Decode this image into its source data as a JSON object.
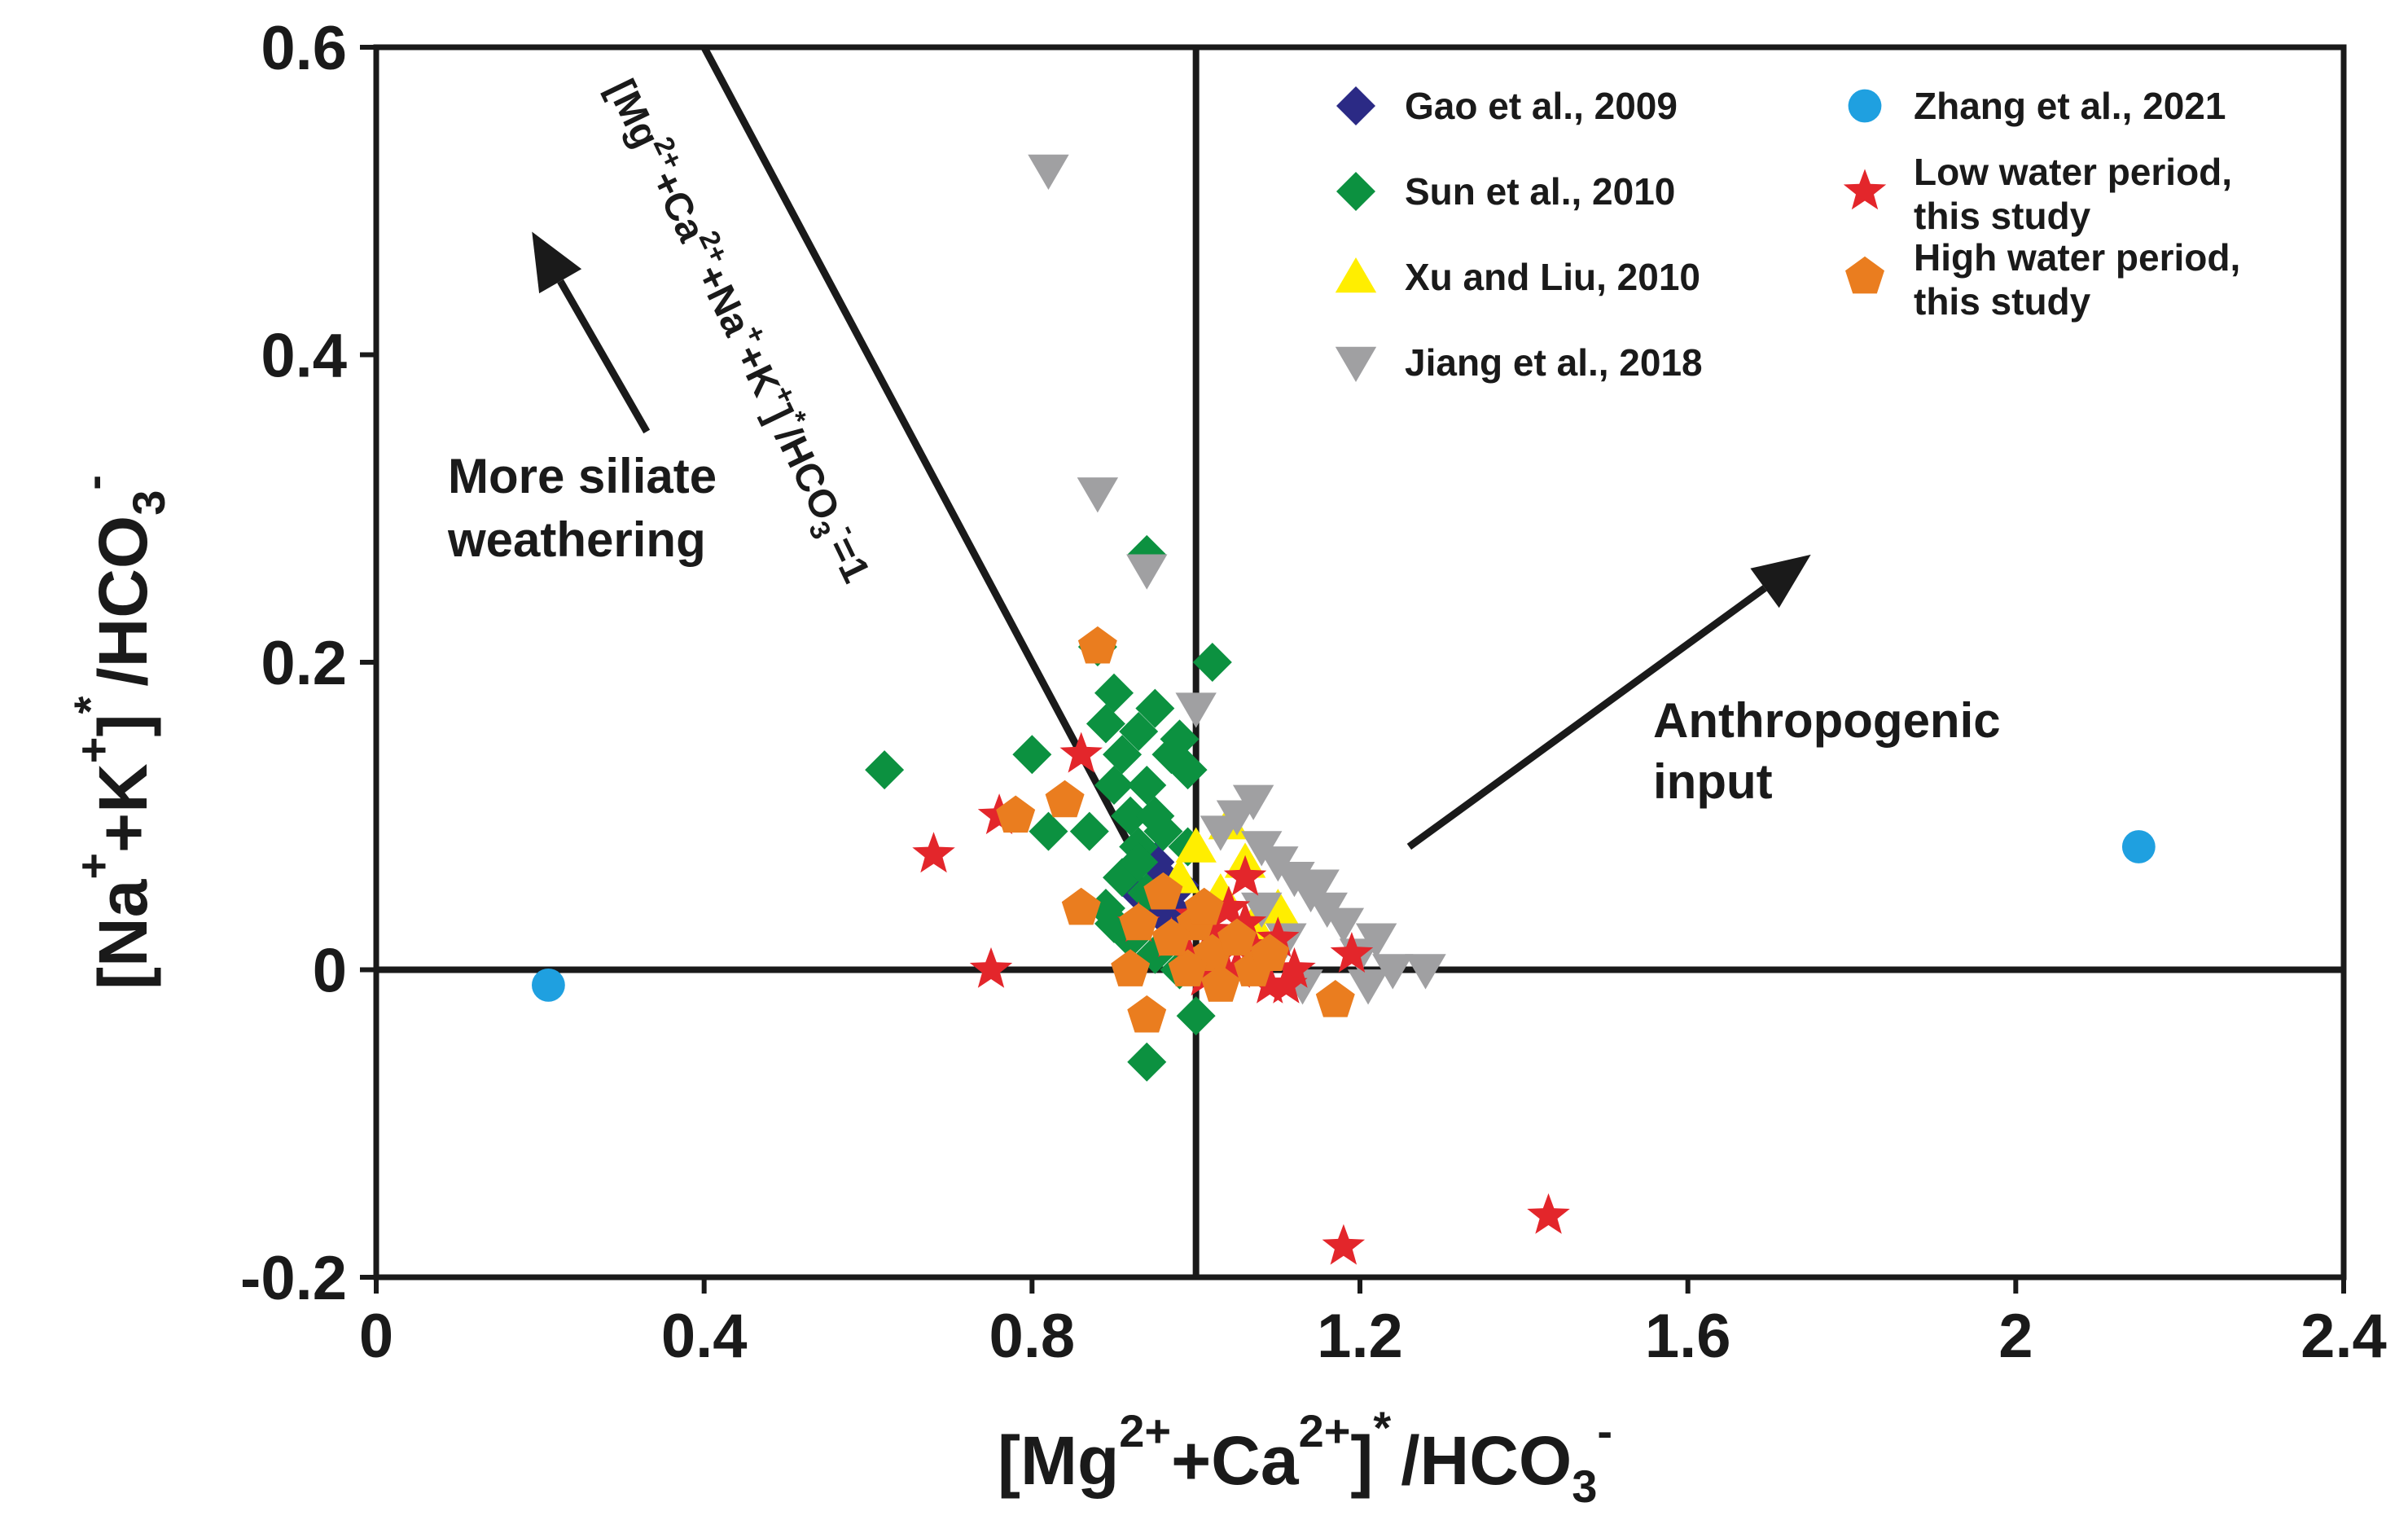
{
  "chart_data": {
    "type": "scatter",
    "title": "",
    "xlabel": {
      "main": "[Mg",
      "sup1": "2+",
      "mid": "+Ca",
      "sup2": "2+",
      "close": "]",
      "star": "*",
      "tail": "/HCO",
      "sub": "3",
      "sup3": "-"
    },
    "ylabel": {
      "main": "[Na",
      "sup1": "+",
      "mid": "+K",
      "sup2": "+",
      "close": "]",
      "star": "*",
      "tail": "/HCO",
      "sub": "3",
      "sup3": "-"
    },
    "xlim": [
      0,
      2.4
    ],
    "ylim": [
      -0.2,
      0.6
    ],
    "xticks": [
      0,
      0.4,
      0.8,
      1.2,
      1.6,
      2,
      2.4
    ],
    "xtick_labels": [
      "0",
      "0.4",
      "0.8",
      "1.2",
      "1.6",
      "2",
      "2.4"
    ],
    "yticks": [
      -0.2,
      0,
      0.2,
      0.4,
      0.6
    ],
    "ytick_labels": [
      "-0.2",
      "0",
      "0.2",
      "0.4",
      "0.6"
    ],
    "reference_lines": {
      "x": 1.0,
      "y": 0.0,
      "sum_line": [
        [
          0.4,
          0.6
        ],
        [
          0.92,
          0.08
        ]
      ]
    },
    "sum_line_label": {
      "a": "[Mg",
      "b": "2+",
      "c": "+Ca",
      "d": "2+",
      "e": "+Na",
      "f": "+",
      "g": "+K",
      "h": "+",
      "i": "]",
      "j": "*",
      "k": "/HCO",
      "l": "3",
      "m": "-",
      "n": "=1"
    },
    "annotations": {
      "silicate_l1": "More siliate",
      "silicate_l2": "weathering",
      "anthro_l1": "Anthropogenic",
      "anthro_l2": "input"
    },
    "arrows": [
      {
        "from": [
          0.33,
          0.35
        ],
        "to": [
          0.19,
          0.48
        ]
      },
      {
        "from": [
          1.26,
          0.08
        ],
        "to": [
          1.75,
          0.27
        ]
      }
    ],
    "legend": [
      {
        "label": "Gao et al., 2009",
        "color": "#2b2a85",
        "marker": "diamond"
      },
      {
        "label": "Sun et al., 2010",
        "color": "#0c9140",
        "marker": "diamond"
      },
      {
        "label": "Xu and Liu, 2010",
        "color": "#ffee00",
        "marker": "triangle-up"
      },
      {
        "label": "Jiang et al., 2018",
        "color": "#a0a0a2",
        "marker": "triangle-down"
      },
      {
        "label": "Zhang et al., 2021",
        "color": "#1fa0e0",
        "marker": "circle"
      },
      {
        "label": "Low water period,",
        "label2": "this study",
        "color": "#e3262b",
        "marker": "star"
      },
      {
        "label": "High water period,",
        "label2": "this study",
        "color": "#ea7d1f",
        "marker": "pentagon"
      }
    ],
    "series": [
      {
        "name": "Gao et al., 2009",
        "points": [
          [
            0.95,
            0.07
          ],
          [
            0.96,
            0.06
          ],
          [
            0.93,
            0.05
          ],
          [
            0.97,
            0.04
          ],
          [
            0.94,
            0.045
          ],
          [
            0.99,
            0.03
          ],
          [
            0.98,
            0.055
          ],
          [
            0.96,
            0.035
          ]
        ]
      },
      {
        "name": "Sun et al., 2010",
        "points": [
          [
            0.94,
            0.27
          ],
          [
            1.02,
            0.2
          ],
          [
            0.88,
            0.21
          ],
          [
            0.9,
            0.18
          ],
          [
            0.89,
            0.16
          ],
          [
            0.95,
            0.17
          ],
          [
            0.93,
            0.155
          ],
          [
            0.97,
            0.14
          ],
          [
            0.99,
            0.13
          ],
          [
            0.98,
            0.15
          ],
          [
            0.91,
            0.14
          ],
          [
            0.94,
            0.12
          ],
          [
            0.9,
            0.12
          ],
          [
            0.62,
            0.13
          ],
          [
            0.8,
            0.14
          ],
          [
            0.92,
            0.1
          ],
          [
            0.95,
            0.1
          ],
          [
            0.96,
            0.09
          ],
          [
            0.87,
            0.09
          ],
          [
            0.82,
            0.09
          ],
          [
            0.93,
            0.08
          ],
          [
            0.99,
            0.08
          ],
          [
            0.91,
            0.06
          ],
          [
            0.94,
            0.05
          ],
          [
            0.89,
            0.04
          ],
          [
            0.9,
            0.03
          ],
          [
            0.92,
            0.02
          ],
          [
            0.95,
            0.01
          ],
          [
            1.0,
            -0.03
          ],
          [
            0.94,
            -0.06
          ],
          [
            0.98,
            0.0
          ],
          [
            0.93,
            0.07
          ]
        ]
      },
      {
        "name": "Xu and Liu, 2010",
        "points": [
          [
            1.04,
            0.095
          ],
          [
            1.0,
            0.08
          ],
          [
            1.06,
            0.07
          ],
          [
            0.98,
            0.06
          ],
          [
            1.03,
            0.05
          ],
          [
            1.1,
            0.04
          ],
          [
            1.07,
            0.03
          ]
        ]
      },
      {
        "name": "Jiang et al., 2018",
        "points": [
          [
            0.82,
            0.52
          ],
          [
            0.88,
            0.31
          ],
          [
            0.94,
            0.26
          ],
          [
            1.0,
            0.17
          ],
          [
            1.07,
            0.11
          ],
          [
            1.05,
            0.1
          ],
          [
            1.03,
            0.09
          ],
          [
            1.08,
            0.08
          ],
          [
            1.1,
            0.07
          ],
          [
            1.12,
            0.06
          ],
          [
            1.14,
            0.05
          ],
          [
            1.16,
            0.04
          ],
          [
            1.08,
            0.04
          ],
          [
            1.18,
            0.03
          ],
          [
            1.22,
            0.02
          ],
          [
            1.2,
            0.01
          ],
          [
            1.24,
            0.0
          ],
          [
            1.28,
            0.0
          ],
          [
            1.21,
            -0.01
          ],
          [
            1.13,
            -0.01
          ],
          [
            1.11,
            0.02
          ],
          [
            1.15,
            0.055
          ]
        ]
      },
      {
        "name": "Zhang et al., 2021",
        "points": [
          [
            0.21,
            -0.01
          ],
          [
            2.15,
            0.08
          ]
        ]
      },
      {
        "name": "Low water period, this study",
        "points": [
          [
            0.68,
            0.075
          ],
          [
            0.76,
            0.1
          ],
          [
            0.75,
            0.0
          ],
          [
            0.86,
            0.14
          ],
          [
            1.18,
            -0.18
          ],
          [
            1.43,
            -0.16
          ],
          [
            0.93,
            0.03
          ],
          [
            0.97,
            0.02
          ],
          [
            1.0,
            0.035
          ],
          [
            1.02,
            0.025
          ],
          [
            1.03,
            0.01
          ],
          [
            1.05,
            0.0
          ],
          [
            1.06,
            0.03
          ],
          [
            1.07,
            0.015
          ],
          [
            1.08,
            0.005
          ],
          [
            1.09,
            -0.01
          ],
          [
            1.1,
            0.02
          ],
          [
            1.12,
            0.0
          ],
          [
            1.04,
            0.04
          ],
          [
            0.99,
            0.01
          ],
          [
            1.01,
            -0.005
          ],
          [
            1.11,
            -0.01
          ],
          [
            1.19,
            0.01
          ],
          [
            1.06,
            0.06
          ]
        ]
      },
      {
        "name": "High water period, this study",
        "points": [
          [
            0.88,
            0.21
          ],
          [
            0.78,
            0.1
          ],
          [
            0.84,
            0.11
          ],
          [
            0.86,
            0.04
          ],
          [
            0.92,
            0.0
          ],
          [
            0.94,
            -0.03
          ],
          [
            0.93,
            0.03
          ],
          [
            0.96,
            0.05
          ],
          [
            1.0,
            0.03
          ],
          [
            1.02,
            0.01
          ],
          [
            0.99,
            0.0
          ],
          [
            1.03,
            -0.01
          ],
          [
            1.05,
            0.02
          ],
          [
            1.07,
            0.0
          ],
          [
            1.09,
            0.01
          ],
          [
            1.17,
            -0.02
          ],
          [
            1.01,
            0.04
          ],
          [
            0.97,
            0.02
          ]
        ]
      }
    ]
  }
}
